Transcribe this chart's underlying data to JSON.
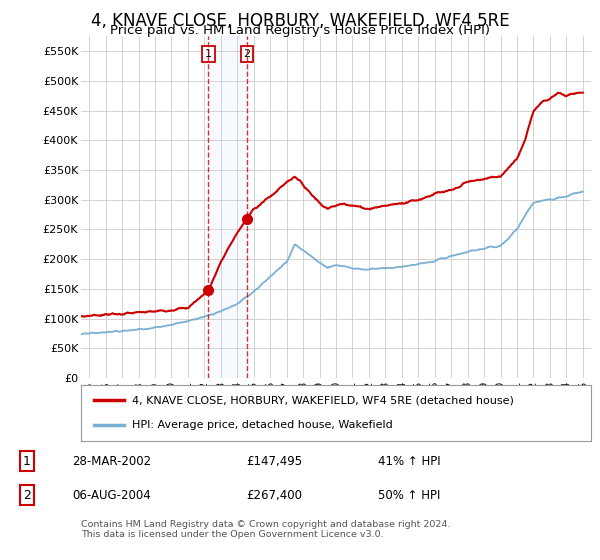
{
  "title": "4, KNAVE CLOSE, HORBURY, WAKEFIELD, WF4 5RE",
  "subtitle": "Price paid vs. HM Land Registry's House Price Index (HPI)",
  "title_fontsize": 12,
  "subtitle_fontsize": 9.5,
  "ylabel_ticks": [
    "£0",
    "£50K",
    "£100K",
    "£150K",
    "£200K",
    "£250K",
    "£300K",
    "£350K",
    "£400K",
    "£450K",
    "£500K",
    "£550K"
  ],
  "ytick_values": [
    0,
    50000,
    100000,
    150000,
    200000,
    250000,
    300000,
    350000,
    400000,
    450000,
    500000,
    550000
  ],
  "ylim": [
    0,
    575000
  ],
  "background_color": "#ffffff",
  "grid_color": "#cccccc",
  "purchase1": {
    "date_num": 2002.24,
    "price": 147495,
    "label": "1"
  },
  "purchase2": {
    "date_num": 2004.59,
    "price": 267400,
    "label": "2"
  },
  "legend_entry1": "4, KNAVE CLOSE, HORBURY, WAKEFIELD, WF4 5RE (detached house)",
  "legend_entry2": "HPI: Average price, detached house, Wakefield",
  "table_rows": [
    {
      "num": "1",
      "date": "28-MAR-2002",
      "price": "£147,495",
      "hpi": "41% ↑ HPI"
    },
    {
      "num": "2",
      "date": "06-AUG-2004",
      "price": "£267,400",
      "hpi": "50% ↑ HPI"
    }
  ],
  "footnote": "Contains HM Land Registry data © Crown copyright and database right 2024.\nThis data is licensed under the Open Government Licence v3.0.",
  "line_color_red": "#cc0000",
  "line_color_blue": "#7ab0d4",
  "shade_color": "#ddeeff",
  "xlim_start": 1994.5,
  "xlim_end": 2025.5
}
